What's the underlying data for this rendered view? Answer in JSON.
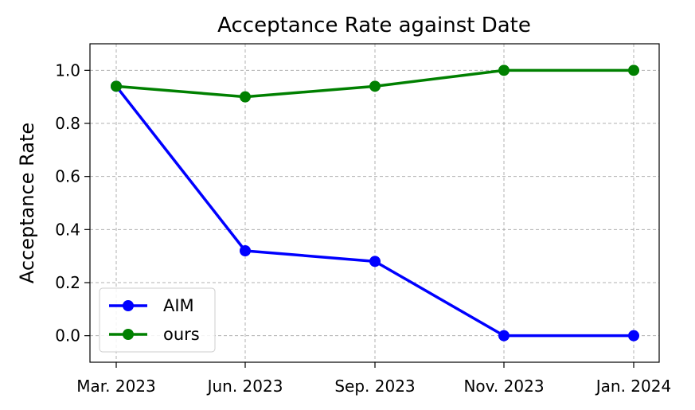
{
  "chart_data": {
    "type": "line",
    "title": "Acceptance Rate against Date",
    "xlabel": "",
    "ylabel": "Acceptance Rate",
    "categories": [
      "Mar. 2023",
      "Jun. 2023",
      "Sep. 2023",
      "Nov. 2023",
      "Jan. 2024"
    ],
    "yticks": [
      "0.0",
      "0.2",
      "0.4",
      "0.6",
      "0.8",
      "1.0"
    ],
    "ylim": [
      -0.1,
      1.1
    ],
    "grid": true,
    "legend_position": "lower-left",
    "series": [
      {
        "name": "AIM",
        "color": "#0000ff",
        "marker": "circle",
        "values": [
          0.94,
          0.32,
          0.28,
          0.0,
          0.0
        ]
      },
      {
        "name": "ours",
        "color": "#008000",
        "marker": "circle",
        "values": [
          0.94,
          0.9,
          0.94,
          1.0,
          1.0
        ]
      }
    ]
  }
}
